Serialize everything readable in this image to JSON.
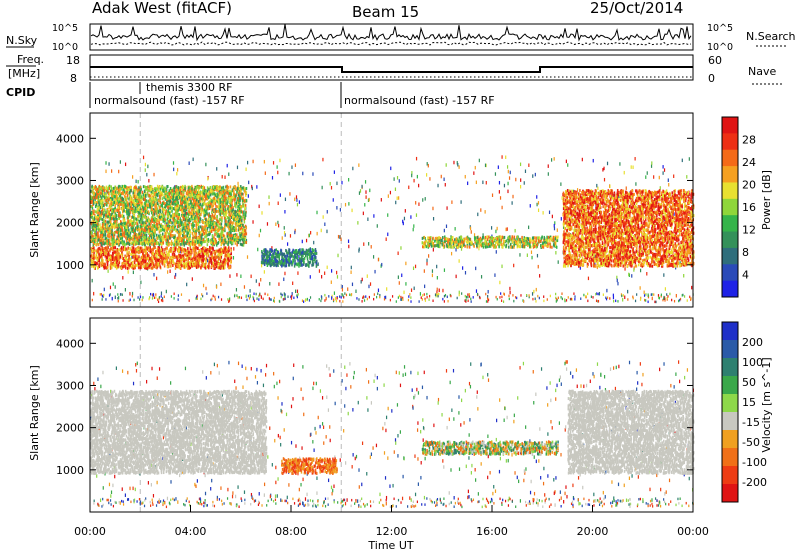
{
  "header": {
    "station": "Adak West (fitACF)",
    "beam": "Beam 15",
    "date": "25/Oct/2014"
  },
  "labels": {
    "nsky": "N.Sky",
    "nsearch": "N.Search",
    "freq_line1": "Freq.",
    "freq_line2": "[MHz]",
    "nave": "Nave",
    "cpid": "CPID",
    "nsky_ticks": [
      "10^5",
      "10^0"
    ],
    "nsearch_ticks": [
      "10^5",
      "10^0"
    ],
    "freq_ticks": [
      "18",
      "8"
    ],
    "nave_ticks": [
      "60",
      "0"
    ]
  },
  "cpid_entries": [
    {
      "label": "themis 3300 RF",
      "start_hour": 2.0
    },
    {
      "label": "normalsound (fast) -157 RF",
      "start_hour": 0.0
    },
    {
      "label": "normalsound (fast) -157 RF",
      "start_hour": 10.0
    }
  ],
  "chart_data": [
    {
      "type": "heatmap",
      "name": "power-panel",
      "ylabel": "Slant Range [km]",
      "xlabel": "",
      "xlim": [
        0,
        24
      ],
      "ylim": [
        0,
        4600
      ],
      "yticks": [
        1000,
        2000,
        3000,
        4000
      ],
      "colorbar": {
        "title": "Power [dB]",
        "ticks": [
          "4",
          "8",
          "12",
          "16",
          "20",
          "24",
          "28"
        ],
        "colors": [
          "#1f22e6",
          "#2a4ab8",
          "#2f6e7c",
          "#34915a",
          "#35b44a",
          "#8fd63a",
          "#e8e030",
          "#f5a020",
          "#f46a18",
          "#ee2f14",
          "#e01414"
        ]
      },
      "features": [
        {
          "start_hour": 0.0,
          "end_hour": 5.6,
          "range_km": [
            950,
            1450
          ],
          "level": "high"
        },
        {
          "start_hour": 0.0,
          "end_hour": 6.2,
          "range_km": [
            1500,
            2900
          ],
          "level": "mid"
        },
        {
          "start_hour": 6.8,
          "end_hour": 9.0,
          "range_km": [
            1000,
            1400
          ],
          "level": "low"
        },
        {
          "start_hour": 13.2,
          "end_hour": 18.6,
          "range_km": [
            1450,
            1700
          ],
          "level": "mid"
        },
        {
          "start_hour": 18.8,
          "end_hour": 24.0,
          "range_km": [
            1000,
            2800
          ],
          "level": "high"
        }
      ]
    },
    {
      "type": "heatmap",
      "name": "velocity-panel",
      "ylabel": "Slant Range [km]",
      "xlabel": "Time UT",
      "xlim": [
        0,
        24
      ],
      "ylim": [
        0,
        4600
      ],
      "yticks": [
        1000,
        2000,
        3000,
        4000
      ],
      "xticks": [
        "00:00",
        "04:00",
        "08:00",
        "12:00",
        "16:00",
        "20:00",
        "00:00"
      ],
      "colorbar": {
        "title": "Velocity [m s^-1]",
        "ticks": [
          "200",
          "100",
          "50",
          "15",
          "-15",
          "-50",
          "-100",
          "-200"
        ],
        "colors": [
          "#1f30c8",
          "#2a5aa8",
          "#2e8070",
          "#3aa84a",
          "#8ed84a",
          "#c8c8c0",
          "#f0a020",
          "#f07018",
          "#ee3c14",
          "#e01414"
        ]
      },
      "features": [
        {
          "start_hour": 0.0,
          "end_hour": 7.0,
          "range_km": [
            950,
            2900
          ],
          "level": "ground"
        },
        {
          "start_hour": 7.6,
          "end_hour": 9.8,
          "range_km": [
            950,
            1300
          ],
          "level": "negative"
        },
        {
          "start_hour": 13.2,
          "end_hour": 18.6,
          "range_km": [
            1400,
            1700
          ],
          "level": "mixed"
        },
        {
          "start_hour": 19.0,
          "end_hour": 24.0,
          "range_km": [
            950,
            2900
          ],
          "level": "ground"
        }
      ]
    }
  ]
}
